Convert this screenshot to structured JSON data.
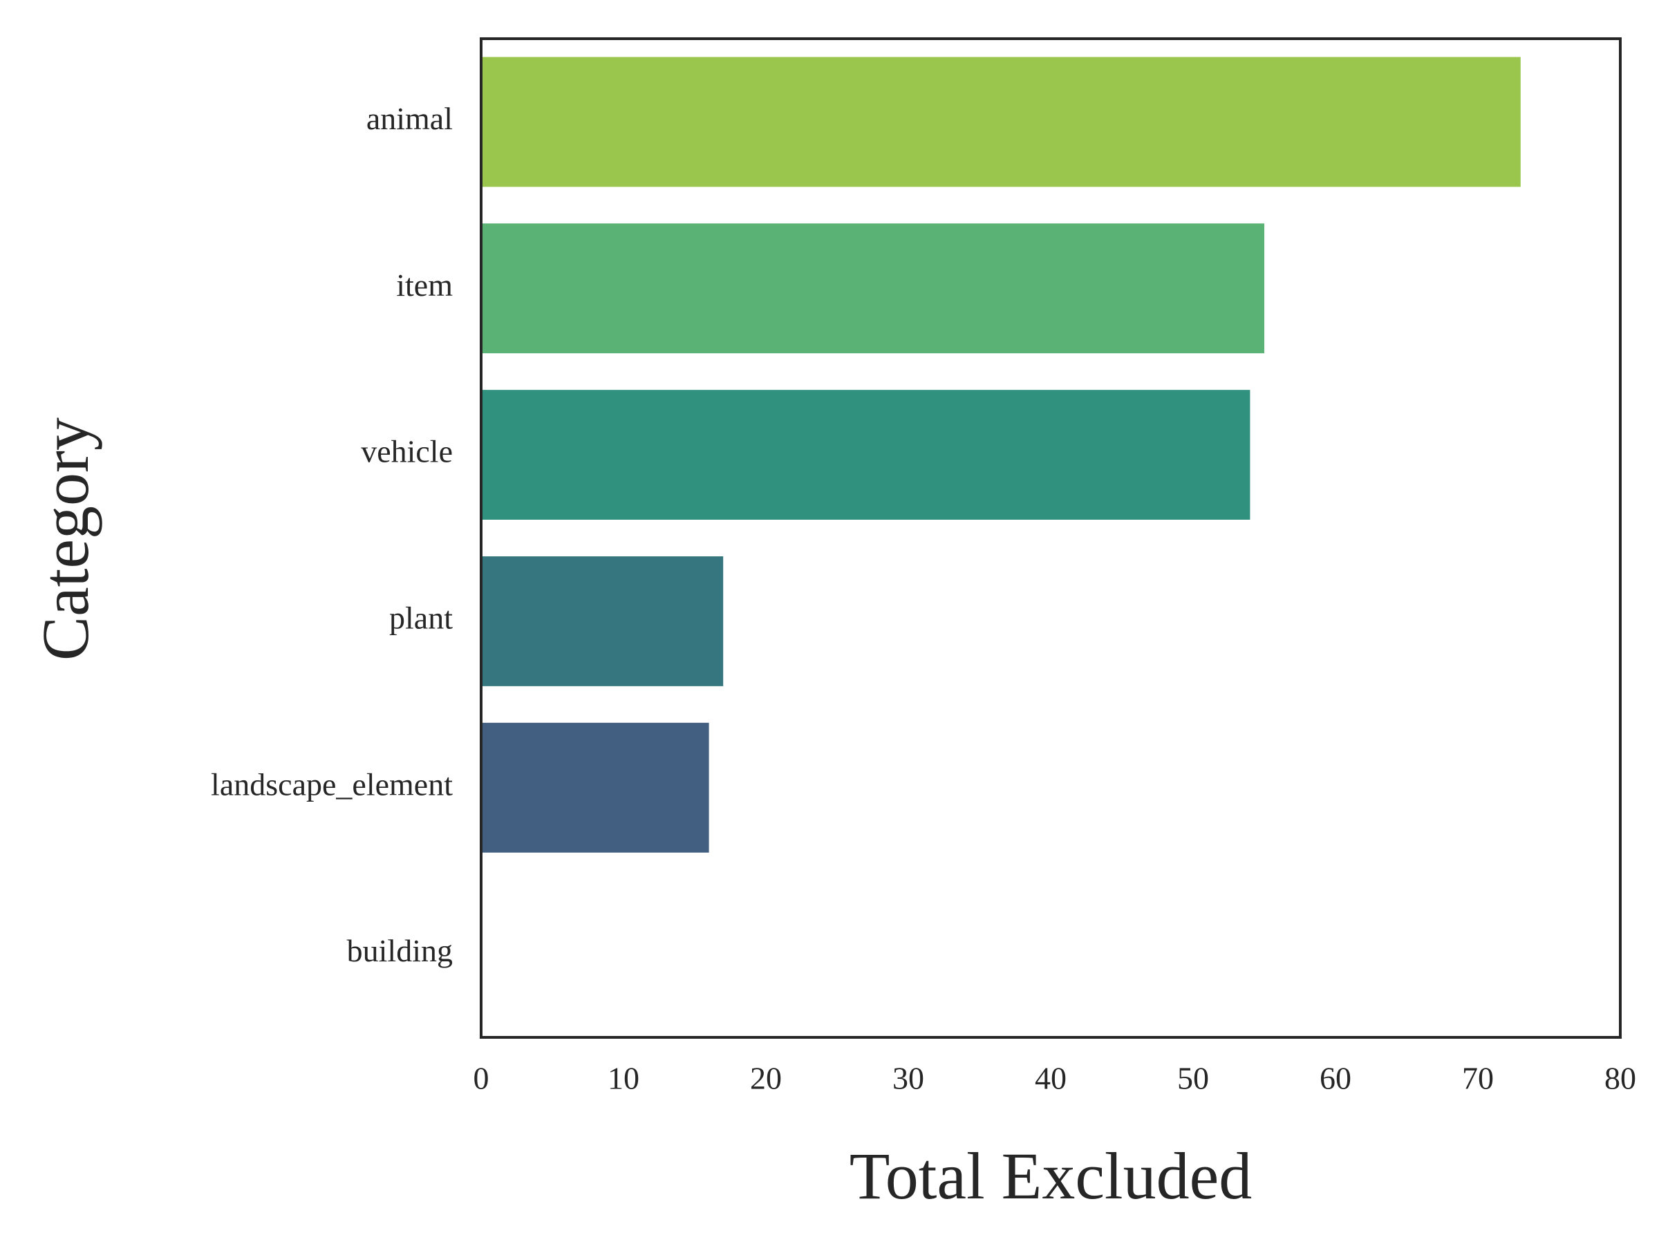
{
  "chart_data": {
    "type": "barh",
    "xlabel": "Total Excluded",
    "ylabel": "Category",
    "categories": [
      "animal",
      "item",
      "vehicle",
      "plant",
      "landscape_element",
      "building"
    ],
    "values": [
      73,
      55,
      54,
      17,
      16,
      0
    ],
    "colors": [
      "#9bc64e",
      "#5ab274",
      "#30917e",
      "#35767f",
      "#425e80",
      "#472c7a"
    ],
    "xlim": [
      0,
      80
    ],
    "xticks": [
      0,
      10,
      20,
      30,
      40,
      50,
      60,
      70,
      80
    ],
    "grid": false
  }
}
